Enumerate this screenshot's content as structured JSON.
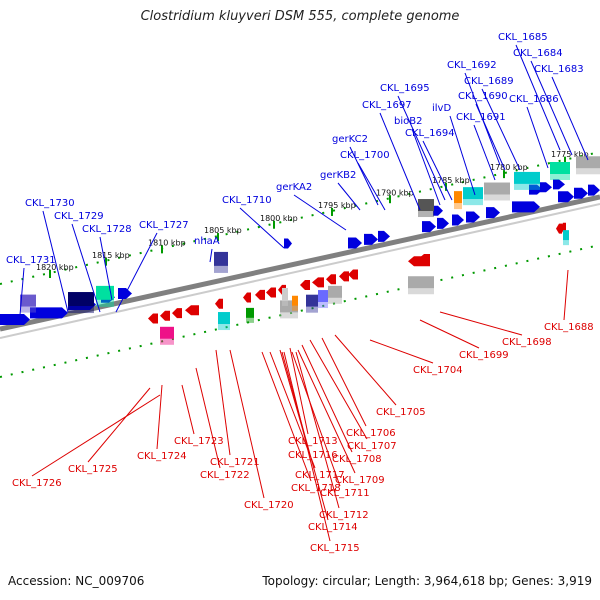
{
  "title": "Clostridium kluyveri DSM 555, complete genome",
  "footer": {
    "accession": "Accession: NC_009706",
    "topology": "Topology: circular; Length: 3,964,618 bp; Genes: 3,919"
  },
  "colors": {
    "plus_strand": "#0000dd",
    "minus_strand": "#dd0000",
    "backbone": "#808080",
    "tick_green": "#009900",
    "cog_cyan": "#00cccc",
    "cog_navy": "#000066",
    "cog_teal": "#00e0a0",
    "cog_gray": "#aaaaaa",
    "cog_magenta": "#ee1188",
    "cog_orange": "#ff8800"
  },
  "kbp_ticks": [
    "1775 kbp",
    "1780 kbp",
    "1785 kbp",
    "1790 kbp",
    "1795 kbp",
    "1800 kbp",
    "1805 kbp",
    "1810 kbp",
    "1815 kbp",
    "1820 kbp"
  ],
  "plus_genes": [
    "CKL_1685",
    "CKL_1684",
    "CKL_1683",
    "CKL_1692",
    "CKL_1689",
    "CKL_1686",
    "CKL_1690",
    "CKL_1695",
    "CKL_1691",
    "CKL_1697",
    "ilvD",
    "bioB2",
    "CKL_1694",
    "gerKC2",
    "CKL_1700",
    "gerKB2",
    "gerKA2",
    "CKL_1710",
    "nhaA",
    "CKL_1730",
    "CKL_1729",
    "CKL_1728",
    "CKL_1727",
    "CKL_1731"
  ],
  "minus_genes": [
    "CKL_1688",
    "CKL_1698",
    "CKL_1699",
    "CKL_1704",
    "CKL_1705",
    "CKL_1706",
    "CKL_1707",
    "CKL_1708",
    "CKL_1713",
    "CKL_1709",
    "CKL_1716",
    "CKL_1711",
    "CKL_1717",
    "CKL_1718",
    "CKL_1712",
    "CKL_1714",
    "CKL_1715",
    "CKL_1720",
    "CKL_1721",
    "CKL_1722",
    "CKL_1723",
    "CKL_1724",
    "CKL_1725",
    "CKL_1726"
  ]
}
